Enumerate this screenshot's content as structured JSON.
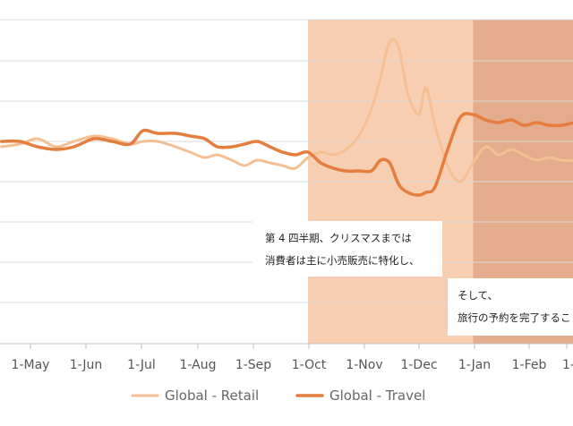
{
  "chart_data": {
    "type": "line",
    "x_tick_labels": [
      "1-May",
      "1-Jun",
      "1-Jul",
      "1-Aug",
      "1-Sep",
      "1-Oct",
      "1-Nov",
      "1-Dec",
      "1-Jan",
      "1-Feb",
      "1-"
    ],
    "grid": true,
    "legend_position": "bottom",
    "series": [
      {
        "name": "Global - Retail",
        "color": "#f5bf94",
        "points": [
          [
            "4-15",
            0.98
          ],
          [
            "4-25",
            0.99
          ],
          [
            "5-05",
            1.01
          ],
          [
            "5-15",
            0.98
          ],
          [
            "5-25",
            1.0
          ],
          [
            "6-05",
            1.02
          ],
          [
            "6-15",
            1.01
          ],
          [
            "6-25",
            0.99
          ],
          [
            "7-02",
            1.0
          ],
          [
            "7-10",
            1.0
          ],
          [
            "7-20",
            0.98
          ],
          [
            "7-28",
            0.96
          ],
          [
            "8-05",
            0.94
          ],
          [
            "8-12",
            0.95
          ],
          [
            "8-20",
            0.93
          ],
          [
            "8-27",
            0.91
          ],
          [
            "9-03",
            0.93
          ],
          [
            "9-10",
            0.92
          ],
          [
            "9-17",
            0.91
          ],
          [
            "9-24",
            0.9
          ],
          [
            "10-01",
            0.94
          ],
          [
            "10-08",
            0.96
          ],
          [
            "10-15",
            0.95
          ],
          [
            "10-22",
            0.97
          ],
          [
            "10-29",
            1.02
          ],
          [
            "11-05",
            1.12
          ],
          [
            "11-10",
            1.24
          ],
          [
            "11-15",
            1.37
          ],
          [
            "11-20",
            1.35
          ],
          [
            "11-25",
            1.18
          ],
          [
            "12-01",
            1.1
          ],
          [
            "12-05",
            1.2
          ],
          [
            "12-10",
            1.06
          ],
          [
            "12-17",
            0.91
          ],
          [
            "12-24",
            0.85
          ],
          [
            "12-31",
            0.92
          ],
          [
            "1-07",
            0.98
          ],
          [
            "1-14",
            0.95
          ],
          [
            "1-21",
            0.97
          ],
          [
            "1-28",
            0.95
          ],
          [
            "2-04",
            0.93
          ],
          [
            "2-11",
            0.94
          ],
          [
            "2-18",
            0.93
          ],
          [
            "2-25",
            0.93
          ],
          [
            "3-04",
            0.94
          ]
        ]
      },
      {
        "name": "Global - Travel",
        "color": "#e47d3d",
        "points": [
          [
            "4-15",
            1.0
          ],
          [
            "4-25",
            1.0
          ],
          [
            "5-05",
            0.98
          ],
          [
            "5-15",
            0.97
          ],
          [
            "5-25",
            0.98
          ],
          [
            "6-05",
            1.01
          ],
          [
            "6-15",
            1.0
          ],
          [
            "6-25",
            0.99
          ],
          [
            "7-02",
            1.04
          ],
          [
            "7-10",
            1.03
          ],
          [
            "7-20",
            1.03
          ],
          [
            "7-28",
            1.02
          ],
          [
            "8-05",
            1.01
          ],
          [
            "8-12",
            0.98
          ],
          [
            "8-20",
            0.98
          ],
          [
            "8-27",
            0.99
          ],
          [
            "9-03",
            1.0
          ],
          [
            "9-10",
            0.98
          ],
          [
            "9-17",
            0.96
          ],
          [
            "9-24",
            0.95
          ],
          [
            "10-01",
            0.96
          ],
          [
            "10-08",
            0.92
          ],
          [
            "10-15",
            0.9
          ],
          [
            "10-22",
            0.89
          ],
          [
            "10-29",
            0.89
          ],
          [
            "11-05",
            0.89
          ],
          [
            "11-10",
            0.93
          ],
          [
            "11-15",
            0.92
          ],
          [
            "11-20",
            0.84
          ],
          [
            "11-25",
            0.81
          ],
          [
            "12-01",
            0.8
          ],
          [
            "12-05",
            0.81
          ],
          [
            "12-10",
            0.83
          ],
          [
            "12-17",
            0.97
          ],
          [
            "12-24",
            1.09
          ],
          [
            "12-31",
            1.1
          ],
          [
            "1-07",
            1.08
          ],
          [
            "1-14",
            1.07
          ],
          [
            "1-21",
            1.08
          ],
          [
            "1-28",
            1.06
          ],
          [
            "2-04",
            1.07
          ],
          [
            "2-11",
            1.06
          ],
          [
            "2-18",
            1.06
          ],
          [
            "2-25",
            1.07
          ],
          [
            "3-04",
            1.07
          ]
        ]
      }
    ],
    "highlight_bands": [
      {
        "from": "10-01",
        "to": "12-31",
        "color": "#f6c6a3"
      },
      {
        "from": "12-31",
        "to": "3-04",
        "color": "#df9d78"
      }
    ],
    "annotations": [
      {
        "lines": [
          "第 4 四半期、クリスマスまでは",
          "消費者は主に小売販売に特化し、"
        ]
      },
      {
        "lines": [
          "そして、",
          "旅行の予約を完了するこ"
        ]
      }
    ]
  }
}
